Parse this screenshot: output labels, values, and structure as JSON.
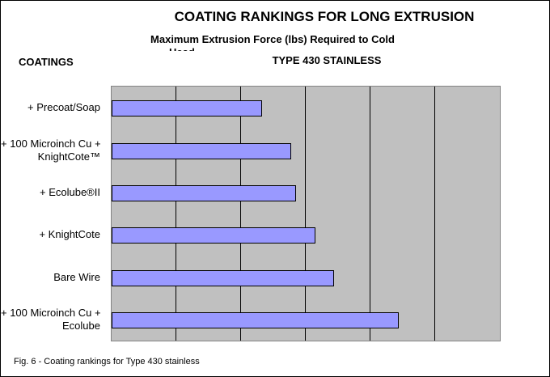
{
  "header": {
    "title": "COATING RANKINGS FOR LONG EXTRUSION",
    "subtitle_line1": "Maximum Extrusion Force (lbs) Required to Cold",
    "subtitle_line2_clipped": "Head",
    "y_axis_label": "COATINGS",
    "series_label": "TYPE 430 STAINLESS"
  },
  "caption": {
    "text": "Fig. 6 - Coating rankings for Type 430 stainless"
  },
  "chart_data": {
    "type": "bar",
    "orientation": "horizontal",
    "title": "COATING RANKINGS FOR LONG EXTRUSION",
    "subtitle": "Maximum Extrusion Force (lbs) Required to Cold",
    "series_label": "TYPE 430 STAINLESS",
    "ylabel": "COATINGS",
    "xlabel": "",
    "x_tick_labels": [],
    "xlim": [
      0,
      6
    ],
    "gridline_count": 5,
    "grid": "vertical-only",
    "legend": "none",
    "categories": [
      "+ Precoat/Soap",
      "+ 100 Microinch Cu + KnightCote™",
      "+ Ecolube®II",
      "+ KnightCote",
      "Bare Wire",
      "+ 100 Microinch Cu + Ecolube"
    ],
    "values": [
      2.32,
      2.78,
      2.85,
      3.15,
      3.44,
      4.44
    ],
    "value_units": "grid divisions (axis unlabeled, estimated from gridlines)",
    "rows": [
      {
        "label_lines": [
          "+ Precoat/Soap"
        ],
        "value": 2.32
      },
      {
        "label_lines": [
          "+ 100 Microinch Cu +",
          "KnightCote™"
        ],
        "value": 2.78
      },
      {
        "label_lines": [
          "+ Ecolube®II"
        ],
        "value": 2.85
      },
      {
        "label_lines": [
          "+ KnightCote"
        ],
        "value": 3.15
      },
      {
        "label_lines": [
          "Bare Wire"
        ],
        "value": 3.44
      },
      {
        "label_lines": [
          "+ 100 Microinch Cu +",
          "Ecolube"
        ],
        "value": 4.44
      }
    ],
    "colors": {
      "bar_fill": "#9999ff",
      "bar_border": "#000000",
      "plot_background": "#c0c0c0",
      "plot_border": "#848484",
      "gridline": "#000000",
      "page_background": "#ffffff",
      "text": "#000000"
    }
  }
}
